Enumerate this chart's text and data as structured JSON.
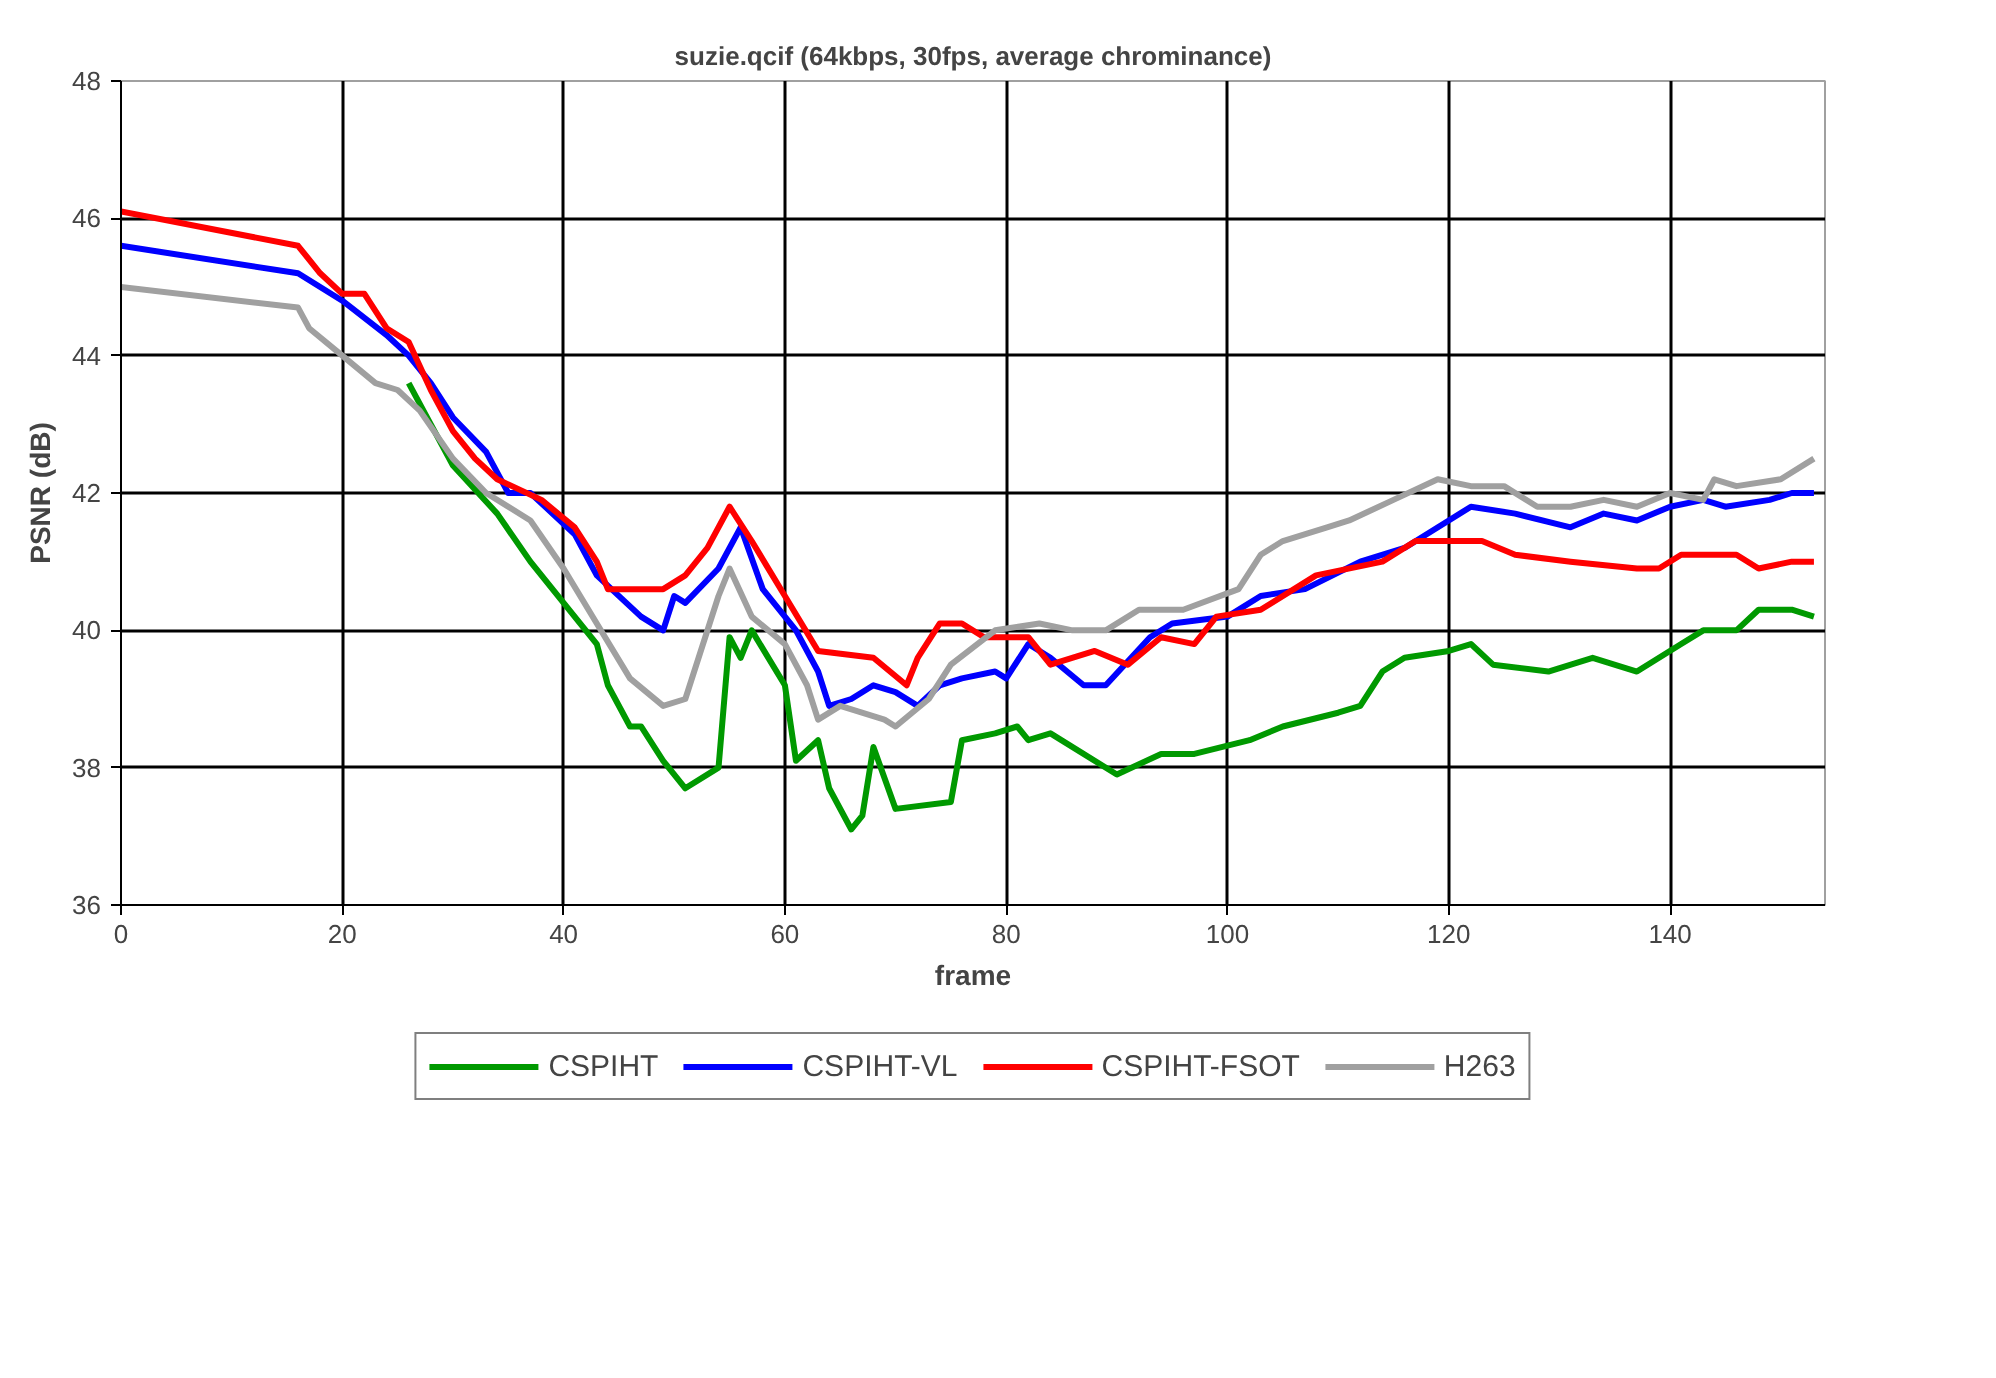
{
  "chart_data": {
    "type": "line",
    "title": "suzie.qcif (64kbps, 30fps, average chrominance)",
    "xlabel": "frame",
    "ylabel": "PSNR (dB)",
    "xlim": [
      0,
      154
    ],
    "xticks": [
      0,
      20,
      40,
      60,
      80,
      100,
      120,
      140
    ],
    "ylim": [
      36,
      48
    ],
    "yticks": [
      36,
      38,
      40,
      42,
      44,
      46,
      48
    ],
    "grid": true,
    "legend": "bottom",
    "marker": "none",
    "line_style": "solid",
    "series": [
      {
        "name": "CSPIHT",
        "color": "#009900",
        "x": [
          26,
          28,
          30,
          34,
          37,
          40,
          43,
          44,
          46,
          47,
          49,
          51,
          54,
          55,
          56,
          57,
          60,
          61,
          63,
          64,
          66,
          67,
          68,
          70,
          75,
          76,
          79,
          81,
          82,
          84,
          90,
          94,
          97,
          102,
          105,
          110,
          112,
          114,
          116,
          120,
          122,
          124,
          129,
          133,
          137,
          141,
          143,
          146,
          148,
          151,
          153
        ],
        "values": [
          43.6,
          43.0,
          42.4,
          41.7,
          41.0,
          40.4,
          39.8,
          39.2,
          38.6,
          38.6,
          38.1,
          37.7,
          38.0,
          39.9,
          39.6,
          40.0,
          39.2,
          38.1,
          38.4,
          37.7,
          37.1,
          37.3,
          38.3,
          37.4,
          37.5,
          38.4,
          38.5,
          38.6,
          38.4,
          38.5,
          37.9,
          38.2,
          38.2,
          38.4,
          38.6,
          38.8,
          38.9,
          39.4,
          39.6,
          39.7,
          39.8,
          39.5,
          39.4,
          39.6,
          39.4,
          39.8,
          40.0,
          40.0,
          40.3,
          40.3,
          40.2
        ]
      },
      {
        "name": "CSPIHT-VL",
        "color": "#0000ff",
        "x": [
          0,
          16,
          20,
          24,
          26,
          28,
          30,
          33,
          35,
          37,
          41,
          43,
          47,
          49,
          50,
          51,
          54,
          56,
          58,
          61,
          63,
          64,
          66,
          68,
          70,
          72,
          74,
          76,
          79,
          80,
          82,
          84,
          87,
          89,
          93,
          95,
          100,
          103,
          107,
          112,
          116,
          120,
          122,
          126,
          131,
          134,
          137,
          140,
          143,
          145,
          149,
          151,
          153
        ],
        "values": [
          45.6,
          45.2,
          44.8,
          44.3,
          44.0,
          43.6,
          43.1,
          42.6,
          42.0,
          42.0,
          41.4,
          40.8,
          40.2,
          40.0,
          40.5,
          40.4,
          40.9,
          41.5,
          40.6,
          40.0,
          39.4,
          38.9,
          39.0,
          39.2,
          39.1,
          38.9,
          39.2,
          39.3,
          39.4,
          39.3,
          39.8,
          39.6,
          39.2,
          39.2,
          39.9,
          40.1,
          40.2,
          40.5,
          40.6,
          41.0,
          41.2,
          41.6,
          41.8,
          41.7,
          41.5,
          41.7,
          41.6,
          41.8,
          41.9,
          41.8,
          41.9,
          42.0,
          42.0
        ]
      },
      {
        "name": "CSPIHT-FSOT",
        "color": "#ff0000",
        "x": [
          0,
          16,
          18,
          20,
          22,
          24,
          26,
          28,
          30,
          32,
          34,
          38,
          41,
          43,
          44,
          46,
          49,
          51,
          53,
          55,
          57,
          60,
          63,
          68,
          71,
          72,
          74,
          76,
          78,
          82,
          84,
          88,
          91,
          94,
          97,
          99,
          103,
          108,
          114,
          117,
          120,
          123,
          126,
          131,
          137,
          139,
          141,
          146,
          148,
          151,
          153
        ],
        "values": [
          46.1,
          45.6,
          45.2,
          44.9,
          44.9,
          44.4,
          44.2,
          43.5,
          42.9,
          42.5,
          42.2,
          41.9,
          41.5,
          41.0,
          40.6,
          40.6,
          40.6,
          40.8,
          41.2,
          41.8,
          41.3,
          40.5,
          39.7,
          39.6,
          39.2,
          39.6,
          40.1,
          40.1,
          39.9,
          39.9,
          39.5,
          39.7,
          39.5,
          39.9,
          39.8,
          40.2,
          40.3,
          40.8,
          41.0,
          41.3,
          41.3,
          41.3,
          41.1,
          41.0,
          40.9,
          40.9,
          41.1,
          41.1,
          40.9,
          41.0,
          41.0
        ]
      },
      {
        "name": "H263",
        "color": "#a0a0a0",
        "x": [
          0,
          16,
          17,
          20,
          23,
          25,
          27,
          30,
          33,
          37,
          40,
          43,
          46,
          49,
          51,
          54,
          55,
          57,
          60,
          62,
          63,
          65,
          69,
          70,
          73,
          75,
          79,
          83,
          86,
          89,
          92,
          96,
          101,
          103,
          105,
          109,
          111,
          115,
          119,
          122,
          125,
          128,
          131,
          134,
          137,
          140,
          143,
          144,
          146,
          150,
          153
        ],
        "values": [
          45.0,
          44.7,
          44.4,
          44.0,
          43.6,
          43.5,
          43.2,
          42.5,
          42.0,
          41.6,
          40.9,
          40.1,
          39.3,
          38.9,
          39.0,
          40.5,
          40.9,
          40.2,
          39.8,
          39.2,
          38.7,
          38.9,
          38.7,
          38.6,
          39.0,
          39.5,
          40.0,
          40.1,
          40.0,
          40.0,
          40.3,
          40.3,
          40.6,
          41.1,
          41.3,
          41.5,
          41.6,
          41.9,
          42.2,
          42.1,
          42.1,
          41.8,
          41.8,
          41.9,
          41.8,
          42.0,
          41.9,
          42.2,
          42.1,
          42.2,
          42.5
        ]
      }
    ]
  }
}
